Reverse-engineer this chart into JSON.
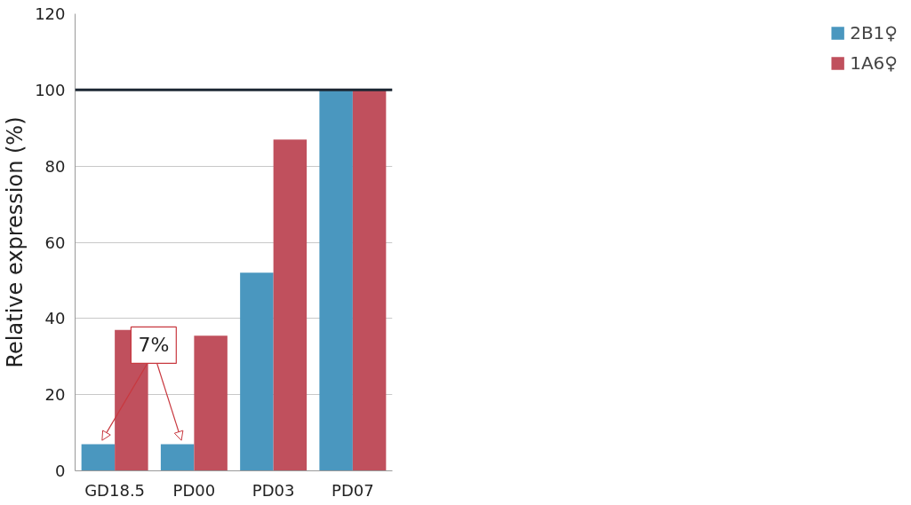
{
  "chart_data": {
    "type": "bar",
    "ylabel": "Relative expression (%)",
    "categories": [
      "GD18.5",
      "PD00",
      "PD03",
      "PD07"
    ],
    "series": [
      {
        "name": "2B1♀",
        "color": "#4a97bf",
        "values": [
          7,
          7,
          52,
          100
        ]
      },
      {
        "name": "1A6♀",
        "color": "#c0505d",
        "values": [
          37,
          35.5,
          87,
          100
        ]
      }
    ],
    "ylim": [
      0,
      120
    ],
    "yticks": [
      0,
      20,
      40,
      60,
      80,
      100,
      120
    ],
    "grid": "y",
    "legend": "right",
    "ref_lines": [
      {
        "axis": "y",
        "value": 100,
        "color": "#1c2733"
      }
    ],
    "annotations": [
      "7%"
    ]
  }
}
